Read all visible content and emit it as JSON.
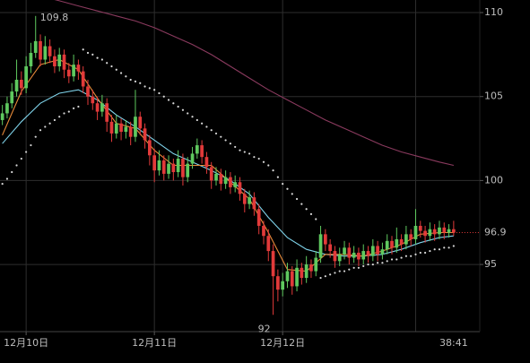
{
  "chart_data": {
    "type": "candlestick",
    "up_color": "#5fc95f",
    "down_color": "#e23a3a",
    "grid": true,
    "xlim": [
      -0.5,
      100.5
    ],
    "ylim": [
      91,
      110.75
    ],
    "yticks": [
      95,
      100,
      105,
      110
    ],
    "xgrid": [
      5,
      32,
      59,
      87
    ],
    "xticks": [
      {
        "value": 5,
        "label": "12月10日"
      },
      {
        "value": 32,
        "label": "12月11日"
      },
      {
        "value": 59,
        "label": "12月12日"
      }
    ],
    "countdown": "38:41",
    "last_price": 96.9,
    "last_price_color": "#e23a3a",
    "annotations": [
      {
        "x": 7,
        "value": 109.8
      },
      {
        "x": 57,
        "value": 92.0
      }
    ],
    "candles": [
      [
        103.6,
        104.5,
        103.3,
        104.0
      ],
      [
        104.0,
        105.0,
        103.7,
        104.6
      ],
      [
        104.6,
        105.8,
        104.3,
        105.3
      ],
      [
        105.3,
        107.2,
        105.0,
        106.0
      ],
      [
        106.0,
        106.5,
        105.1,
        105.5
      ],
      [
        105.5,
        107.4,
        105.2,
        106.8
      ],
      [
        106.8,
        108.2,
        106.4,
        107.6
      ],
      [
        107.6,
        109.8,
        107.3,
        108.3
      ],
      [
        108.3,
        108.7,
        106.8,
        107.2
      ],
      [
        107.2,
        108.6,
        106.9,
        108.0
      ],
      [
        108.0,
        108.4,
        107.0,
        107.4
      ],
      [
        107.4,
        107.8,
        106.4,
        106.8
      ],
      [
        106.8,
        107.9,
        106.5,
        107.5
      ],
      [
        107.5,
        107.8,
        106.1,
        106.6
      ],
      [
        106.6,
        107.0,
        105.8,
        106.2
      ],
      [
        106.2,
        107.5,
        105.9,
        106.9
      ],
      [
        106.9,
        107.2,
        106.0,
        106.5
      ],
      [
        106.5,
        106.8,
        105.2,
        105.6
      ],
      [
        105.6,
        106.0,
        104.5,
        105.0
      ],
      [
        105.0,
        105.4,
        104.2,
        104.6
      ],
      [
        104.6,
        105.0,
        103.6,
        104.1
      ],
      [
        104.1,
        105.1,
        103.8,
        104.6
      ],
      [
        104.6,
        104.9,
        102.9,
        103.5
      ],
      [
        103.5,
        103.9,
        102.3,
        102.8
      ],
      [
        102.8,
        103.9,
        102.5,
        103.4
      ],
      [
        103.4,
        103.7,
        102.4,
        102.9
      ],
      [
        102.9,
        103.6,
        102.5,
        103.2
      ],
      [
        103.2,
        103.5,
        102.1,
        102.6
      ],
      [
        102.6,
        105.4,
        102.3,
        103.8
      ],
      [
        103.8,
        104.1,
        102.7,
        103.1
      ],
      [
        103.1,
        103.4,
        101.9,
        102.4
      ],
      [
        102.4,
        102.7,
        100.9,
        101.5
      ],
      [
        101.5,
        101.9,
        99.9,
        100.6
      ],
      [
        100.6,
        101.8,
        100.3,
        101.2
      ],
      [
        101.2,
        101.5,
        100.0,
        100.4
      ],
      [
        100.4,
        101.5,
        100.1,
        101.0
      ],
      [
        101.0,
        101.3,
        100.0,
        100.5
      ],
      [
        100.5,
        101.8,
        100.2,
        101.3
      ],
      [
        101.3,
        101.6,
        99.7,
        100.2
      ],
      [
        100.2,
        101.4,
        99.9,
        101.0
      ],
      [
        101.0,
        102.0,
        100.7,
        101.6
      ],
      [
        101.6,
        102.5,
        101.3,
        102.1
      ],
      [
        102.1,
        102.4,
        101.0,
        101.4
      ],
      [
        101.4,
        101.7,
        100.4,
        100.8
      ],
      [
        100.8,
        101.1,
        99.5,
        100.0
      ],
      [
        100.0,
        100.8,
        99.7,
        100.4
      ],
      [
        100.4,
        100.7,
        99.4,
        99.8
      ],
      [
        99.8,
        100.6,
        99.5,
        100.2
      ],
      [
        100.2,
        100.5,
        99.2,
        99.6
      ],
      [
        99.6,
        100.3,
        99.3,
        99.9
      ],
      [
        99.9,
        100.2,
        98.8,
        99.2
      ],
      [
        99.2,
        99.5,
        98.1,
        98.6
      ],
      [
        98.6,
        99.4,
        98.3,
        99.0
      ],
      [
        99.0,
        99.3,
        97.9,
        98.3
      ],
      [
        98.3,
        98.6,
        96.8,
        97.3
      ],
      [
        97.3,
        97.6,
        96.2,
        96.7
      ],
      [
        96.7,
        97.1,
        95.2,
        95.8
      ],
      [
        95.8,
        96.2,
        92.0,
        94.3
      ],
      [
        94.3,
        94.7,
        92.8,
        93.5
      ],
      [
        93.5,
        94.5,
        93.1,
        94.0
      ],
      [
        94.0,
        95.1,
        93.6,
        94.6
      ],
      [
        94.6,
        94.9,
        93.2,
        93.7
      ],
      [
        93.7,
        95.3,
        93.4,
        94.8
      ],
      [
        94.8,
        95.1,
        93.8,
        94.2
      ],
      [
        94.2,
        95.5,
        93.9,
        95.0
      ],
      [
        95.0,
        95.3,
        94.2,
        94.6
      ],
      [
        94.6,
        95.8,
        94.3,
        95.4
      ],
      [
        95.4,
        97.3,
        95.1,
        96.8
      ],
      [
        96.8,
        97.1,
        95.8,
        96.2
      ],
      [
        96.2,
        96.5,
        95.4,
        95.8
      ],
      [
        95.8,
        96.1,
        94.8,
        95.2
      ],
      [
        95.2,
        96.0,
        94.9,
        95.6
      ],
      [
        95.6,
        96.4,
        95.3,
        96.0
      ],
      [
        96.0,
        96.3,
        95.0,
        95.4
      ],
      [
        95.4,
        96.1,
        95.1,
        95.7
      ],
      [
        95.7,
        96.0,
        94.9,
        95.3
      ],
      [
        95.3,
        96.2,
        95.0,
        95.8
      ],
      [
        95.8,
        96.1,
        95.1,
        95.5
      ],
      [
        95.5,
        96.5,
        95.2,
        96.1
      ],
      [
        96.1,
        96.4,
        95.2,
        95.6
      ],
      [
        95.6,
        96.3,
        95.3,
        95.9
      ],
      [
        95.9,
        96.8,
        95.6,
        96.4
      ],
      [
        96.4,
        96.7,
        95.6,
        96.0
      ],
      [
        96.0,
        97.2,
        95.7,
        96.5
      ],
      [
        96.5,
        96.8,
        95.8,
        96.2
      ],
      [
        96.2,
        97.3,
        95.9,
        96.8
      ],
      [
        96.8,
        97.1,
        96.1,
        96.5
      ],
      [
        96.5,
        98.3,
        96.2,
        97.3
      ],
      [
        97.3,
        97.6,
        96.6,
        97.0
      ],
      [
        97.0,
        97.3,
        96.3,
        96.7
      ],
      [
        96.7,
        97.5,
        96.4,
        97.1
      ],
      [
        97.1,
        97.4,
        96.4,
        96.8
      ],
      [
        96.8,
        97.6,
        96.5,
        97.2
      ],
      [
        97.2,
        97.5,
        96.5,
        96.9
      ],
      [
        96.9,
        97.4,
        96.6,
        97.1
      ],
      [
        97.1,
        97.6,
        96.7,
        96.9
      ]
    ],
    "lines": [
      {
        "color": "#8a3a5e",
        "x": [
          0,
          4,
          8,
          12,
          16,
          20,
          24,
          28,
          32,
          36,
          40,
          44,
          48,
          52,
          56,
          60,
          64,
          68,
          72,
          76,
          80,
          84,
          88,
          92,
          95
        ],
        "values": [
          111.6,
          111.3,
          111.0,
          110.7,
          110.4,
          110.1,
          109.8,
          109.5,
          109.1,
          108.6,
          108.1,
          107.5,
          106.8,
          106.1,
          105.4,
          104.8,
          104.2,
          103.6,
          103.1,
          102.6,
          102.1,
          101.7,
          101.4,
          101.1,
          100.9
        ]
      },
      {
        "color": "#7fd3ea",
        "x": [
          0,
          4,
          8,
          12,
          16,
          20,
          24,
          28,
          32,
          36,
          40,
          44,
          48,
          52,
          56,
          60,
          64,
          68,
          72,
          76,
          80,
          84,
          88,
          92,
          95
        ],
        "values": [
          102.2,
          103.5,
          104.6,
          105.2,
          105.4,
          104.8,
          103.9,
          103.2,
          102.4,
          101.6,
          101.1,
          100.6,
          100.0,
          99.2,
          97.8,
          96.6,
          95.9,
          95.6,
          95.5,
          95.5,
          95.6,
          95.9,
          96.3,
          96.6,
          96.7
        ]
      },
      {
        "color": "#e88b3a",
        "x": [
          0,
          4,
          8,
          12,
          16,
          20,
          24,
          28,
          32,
          36,
          40,
          44,
          48,
          52,
          56,
          60,
          64,
          68,
          72,
          76,
          80,
          84,
          88,
          92,
          95
        ],
        "values": [
          102.7,
          105.3,
          106.9,
          107.2,
          106.6,
          104.9,
          103.4,
          103.1,
          101.8,
          100.9,
          100.9,
          100.9,
          99.9,
          98.9,
          96.9,
          94.7,
          94.6,
          95.6,
          95.6,
          95.5,
          95.8,
          96.2,
          96.8,
          96.9,
          96.9
        ]
      }
    ],
    "sar": {
      "color": "#d8d8d8",
      "values": [
        99.8,
        100.1,
        100.5,
        100.9,
        101.3,
        101.7,
        102.1,
        102.6,
        103.0,
        103.2,
        103.4,
        103.6,
        103.8,
        104.0,
        104.1,
        104.3,
        104.4,
        107.8,
        107.6,
        107.5,
        107.3,
        107.2,
        107.0,
        106.8,
        106.6,
        106.4,
        106.2,
        106.0,
        105.9,
        105.8,
        105.6,
        105.5,
        105.4,
        105.2,
        105.0,
        104.8,
        104.6,
        104.4,
        104.2,
        104.0,
        103.8,
        103.6,
        103.4,
        103.2,
        103.0,
        102.8,
        102.6,
        102.4,
        102.2,
        102.0,
        101.8,
        101.7,
        101.6,
        101.4,
        101.3,
        101.1,
        100.9,
        100.6,
        100.2,
        99.8,
        99.5,
        99.2,
        98.9,
        98.6,
        98.3,
        98.0,
        97.7,
        94.2,
        94.3,
        94.4,
        94.5,
        94.6,
        94.6,
        94.7,
        94.8,
        94.8,
        94.9,
        95.0,
        95.0,
        95.1,
        95.1,
        95.2,
        95.3,
        95.3,
        95.4,
        95.5,
        95.5,
        95.6,
        95.7,
        95.7,
        95.8,
        95.9,
        95.9,
        96.0,
        96.0,
        96.1
      ]
    }
  }
}
